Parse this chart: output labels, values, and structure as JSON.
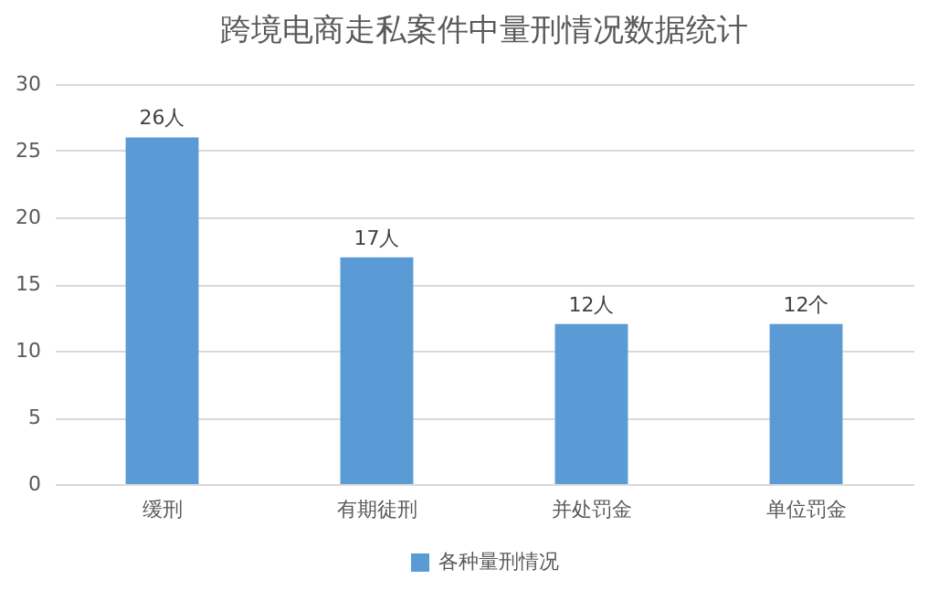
{
  "chart_data": {
    "type": "bar",
    "title": "跨境电商走私案件中量刑情况数据统计",
    "categories": [
      "缓刑",
      "有期徒刑",
      "并处罚金",
      "单位罚金"
    ],
    "series": [
      {
        "name": "各种量刑情况",
        "color": "#5b9bd5",
        "values": [
          26,
          17,
          12,
          12
        ],
        "value_labels": [
          "26人",
          "17人",
          "12人",
          "12个"
        ]
      }
    ],
    "ylim": [
      0,
      30
    ],
    "yticks": [
      0,
      5,
      10,
      15,
      20,
      25,
      30
    ],
    "grid": "y",
    "legend": "bottom"
  }
}
